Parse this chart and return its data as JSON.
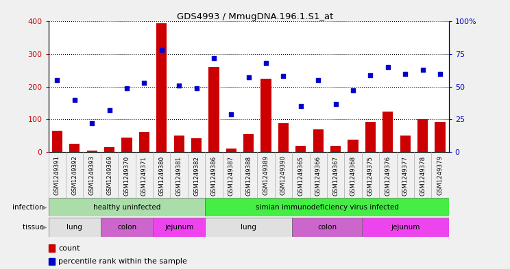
{
  "title": "GDS4993 / MmugDNA.196.1.S1_at",
  "samples": [
    "GSM1249391",
    "GSM1249392",
    "GSM1249393",
    "GSM1249369",
    "GSM1249370",
    "GSM1249371",
    "GSM1249380",
    "GSM1249381",
    "GSM1249382",
    "GSM1249386",
    "GSM1249387",
    "GSM1249388",
    "GSM1249389",
    "GSM1249390",
    "GSM1249365",
    "GSM1249366",
    "GSM1249367",
    "GSM1249368",
    "GSM1249375",
    "GSM1249376",
    "GSM1249377",
    "GSM1249378",
    "GSM1249379"
  ],
  "counts": [
    65,
    25,
    5,
    15,
    45,
    60,
    395,
    50,
    42,
    260,
    10,
    55,
    225,
    88,
    20,
    70,
    20,
    38,
    93,
    123,
    50,
    100,
    93
  ],
  "percentiles": [
    55,
    40,
    22,
    32,
    49,
    53,
    78,
    51,
    49,
    72,
    29,
    57,
    68,
    58,
    35,
    55,
    37,
    47,
    59,
    65,
    60,
    63,
    60
  ],
  "bar_color": "#CC0000",
  "dot_color": "#0000CC",
  "left_ylim": [
    0,
    400
  ],
  "right_ylim": [
    0,
    100
  ],
  "left_yticks": [
    0,
    100,
    200,
    300,
    400
  ],
  "right_yticks": [
    0,
    25,
    50,
    75,
    100
  ],
  "right_yticklabels": [
    "0",
    "25",
    "50",
    "75",
    "100%"
  ],
  "legend_count_label": "count",
  "legend_pct_label": "percentile rank within the sample",
  "bg_color": "#F0F0F0",
  "plot_bg": "#FFFFFF",
  "xtick_bg": "#D8D8D8",
  "infection_color": "#90EE90",
  "infection_bright": "#44DD44",
  "tissue_lung_color": "#E0E0E0",
  "tissue_colon_color": "#CC66CC",
  "tissue_jejunum_color": "#EE44EE",
  "infection_groups": [
    {
      "label": "healthy uninfected",
      "start": 0,
      "end": 9
    },
    {
      "label": "simian immunodeficiency virus infected",
      "start": 9,
      "end": 23
    }
  ],
  "tissue_groups": [
    {
      "label": "lung",
      "start": 0,
      "end": 3,
      "color_key": "tissue_lung_color"
    },
    {
      "label": "colon",
      "start": 3,
      "end": 6,
      "color_key": "tissue_colon_color"
    },
    {
      "label": "jejunum",
      "start": 6,
      "end": 9,
      "color_key": "tissue_jejunum_color"
    },
    {
      "label": "lung",
      "start": 9,
      "end": 14,
      "color_key": "tissue_lung_color"
    },
    {
      "label": "colon",
      "start": 14,
      "end": 18,
      "color_key": "tissue_colon_color"
    },
    {
      "label": "jejunum",
      "start": 18,
      "end": 23,
      "color_key": "tissue_jejunum_color"
    }
  ]
}
